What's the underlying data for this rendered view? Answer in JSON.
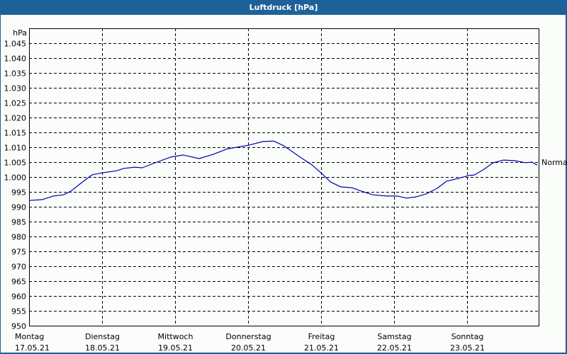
{
  "window": {
    "title": "Luftdruck [hPa]"
  },
  "colors": {
    "title_bar": "#1e6199",
    "line": "#0000b4",
    "grid": "#000000",
    "background": "#fbfdfb"
  },
  "chart_data": {
    "type": "line",
    "title": "Luftdruck [hPa]",
    "ylabel": "hPa",
    "xlabel": "",
    "ylim": [
      950,
      1050
    ],
    "yticks": [
      "950",
      "955",
      "960",
      "965",
      "970",
      "975",
      "980",
      "985",
      "990",
      "995",
      "1.000",
      "1.005",
      "1.010",
      "1.015",
      "1.020",
      "1.025",
      "1.030",
      "1.035",
      "1.040",
      "1.045"
    ],
    "grid": true,
    "x_categories": [
      {
        "day": "Montag",
        "date": "17.05.21"
      },
      {
        "day": "Dienstag",
        "date": "18.05.21"
      },
      {
        "day": "Mittwoch",
        "date": "19.05.21"
      },
      {
        "day": "Donnerstag",
        "date": "20.05.21"
      },
      {
        "day": "Freitag",
        "date": "21.05.21"
      },
      {
        "day": "Samstag",
        "date": "22.05.21"
      },
      {
        "day": "Sonntag",
        "date": "23.05.21"
      }
    ],
    "reference_line": {
      "label": "Normal",
      "value": 1005
    },
    "series": [
      {
        "name": "Luftdruck",
        "x_days": [
          0,
          0.18,
          0.33,
          0.47,
          0.57,
          0.72,
          0.86,
          1.0,
          1.2,
          1.3,
          1.45,
          1.55,
          1.75,
          1.94,
          2.11,
          2.33,
          2.52,
          2.72,
          3.01,
          3.2,
          3.35,
          3.49,
          3.69,
          3.88,
          4.03,
          4.13,
          4.27,
          4.42,
          4.56,
          4.71,
          4.9,
          5.05,
          5.17,
          5.3,
          5.44,
          5.59,
          5.72,
          5.88,
          6.02,
          6.1,
          6.22,
          6.36,
          6.5,
          6.65,
          6.8,
          6.89,
          6.96
        ],
        "values": [
          992.1,
          992.4,
          993.6,
          994.0,
          995.2,
          998.1,
          1000.7,
          1001.4,
          1002.1,
          1002.9,
          1003.3,
          1003.1,
          1005.0,
          1006.7,
          1007.4,
          1006.2,
          1007.6,
          1009.5,
          1010.7,
          1011.9,
          1012.1,
          1010.5,
          1007.1,
          1004.0,
          1000.7,
          998.3,
          996.7,
          996.4,
          995.2,
          994.0,
          993.6,
          993.6,
          992.9,
          993.3,
          994.3,
          996.2,
          998.6,
          999.5,
          1000.5,
          1000.7,
          1002.4,
          1004.8,
          1005.7,
          1005.5,
          1004.8,
          1005.0,
          1004.0
        ]
      }
    ]
  }
}
